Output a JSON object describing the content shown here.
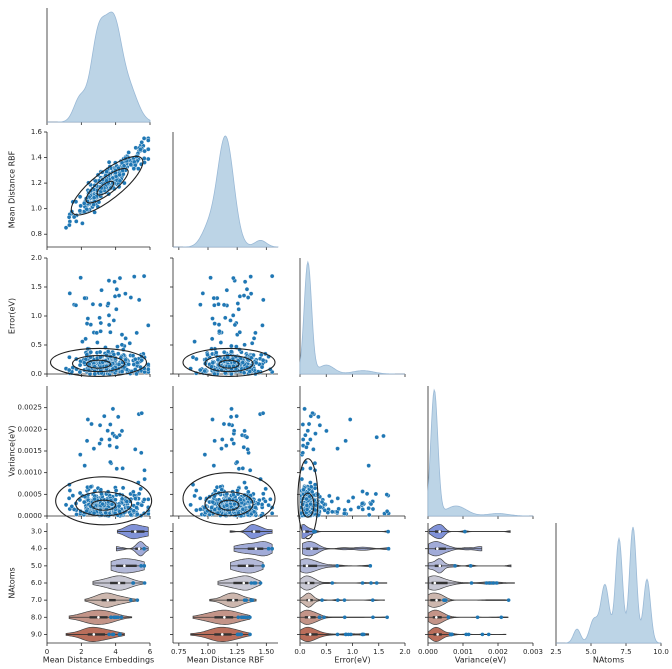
{
  "chart_data": {
    "type": "pairplot",
    "variables": [
      "Mean Distance Embeddings",
      "Mean Distance RBF",
      "Error(eV)",
      "Variance(eV)",
      "NAtoms"
    ],
    "colors": {
      "kde_fill": "#bcd4e6",
      "kde_line": "#9ab9d6",
      "scatter": "#1f77b4",
      "contour": "#222222",
      "axis": "#262626"
    },
    "axes": {
      "Mean Distance Embeddings": {
        "range": [
          0,
          6
        ],
        "ticks": [
          "0",
          "2",
          "4",
          "6"
        ]
      },
      "Mean Distance RBF": {
        "range": [
          0.7,
          1.6
        ],
        "ticks": [
          "0.75",
          "1.00",
          "1.25",
          "1.50"
        ],
        "y_ticks": [
          "0.8",
          "1.0",
          "1.2",
          "1.4",
          "1.6"
        ]
      },
      "Error(eV)": {
        "range": [
          0,
          2.0
        ],
        "ticks": [
          "0.0",
          "0.5",
          "1.0",
          "1.5",
          "2.0"
        ]
      },
      "Variance(eV)": {
        "range": [
          0,
          0.003
        ],
        "ticks": [
          "0.000",
          "0.001",
          "0.002",
          "0.003"
        ],
        "y_ticks": [
          "0.0000",
          "0.0005",
          "0.0010",
          "0.0015",
          "0.0020",
          "0.0025"
        ]
      },
      "NAtoms": {
        "range": [
          2.5,
          10
        ],
        "ticks": [
          "2.5",
          "5.0",
          "7.5",
          "10.0"
        ],
        "categories": [
          "3.0",
          "4.0",
          "5.0",
          "6.0",
          "7.0",
          "8.0",
          "9.0"
        ]
      }
    },
    "distributions": {
      "Mean Distance Embeddings": {
        "peaks": [
          3.1,
          3.9
        ],
        "range": [
          1.0,
          5.8
        ]
      },
      "Mean Distance RBF": {
        "peak": 1.15,
        "range": [
          0.9,
          1.55
        ]
      },
      "Error(eV)": {
        "peak": 0.15,
        "range": [
          0.0,
          1.8
        ]
      },
      "Variance(eV)": {
        "peak": 0.0002,
        "range": [
          0.0,
          0.0025
        ]
      },
      "NAtoms": {
        "peaks": [
          6.0,
          7.0,
          8.0,
          9.0
        ]
      }
    },
    "violin_centers_embeddings": {
      "3.0": 5.3,
      "4.0": 5.2,
      "5.0": 4.7,
      "6.0": 4.0,
      "7.0": 3.6,
      "8.0": 3.0,
      "9.0": 2.8
    },
    "violin_centers_rbf": {
      "3.0": 1.47,
      "4.0": 1.45,
      "5.0": 1.35,
      "6.0": 1.25,
      "7.0": 1.18,
      "8.0": 1.12,
      "9.0": 1.06
    }
  }
}
